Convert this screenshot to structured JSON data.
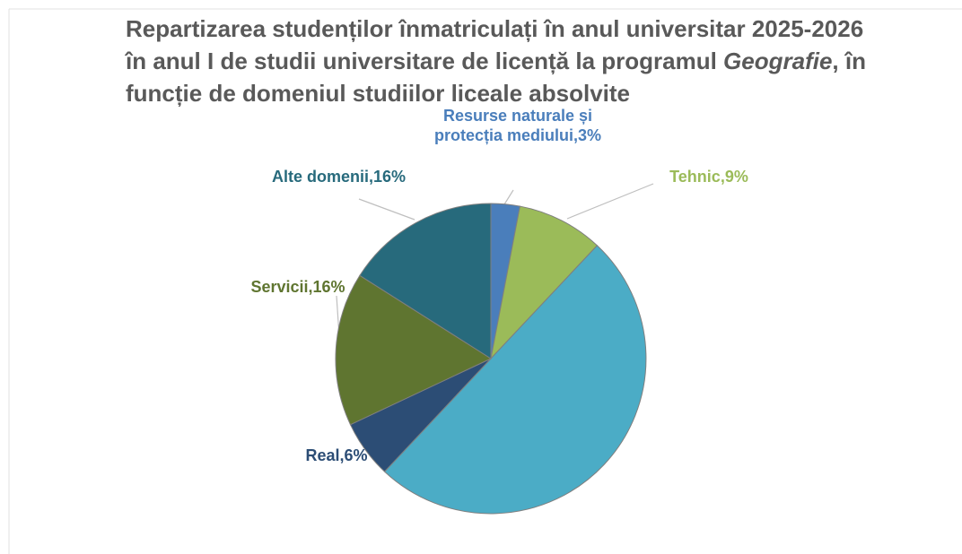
{
  "chart_data": {
    "type": "pie",
    "title_parts": [
      "Repartizarea studenților înmatriculați în anul universitar 2025-2026 în anul I de studii universitare de licență la programul ",
      "Geografie",
      ", în funcție de domeniul studiilor liceale absolvite"
    ],
    "values": [
      3,
      9,
      50,
      6,
      16,
      16
    ],
    "value_labels": [
      "Resurse naturale și protecția mediului,3%",
      "Tehnic,9%",
      null,
      "Real,6%",
      "Servicii,16%",
      "Alte domenii,16%"
    ],
    "colors": [
      "#4a7ebb",
      "#9bbb59",
      "#4bacc6",
      "#2c4d75",
      "#5f7530",
      "#276a7c"
    ]
  }
}
